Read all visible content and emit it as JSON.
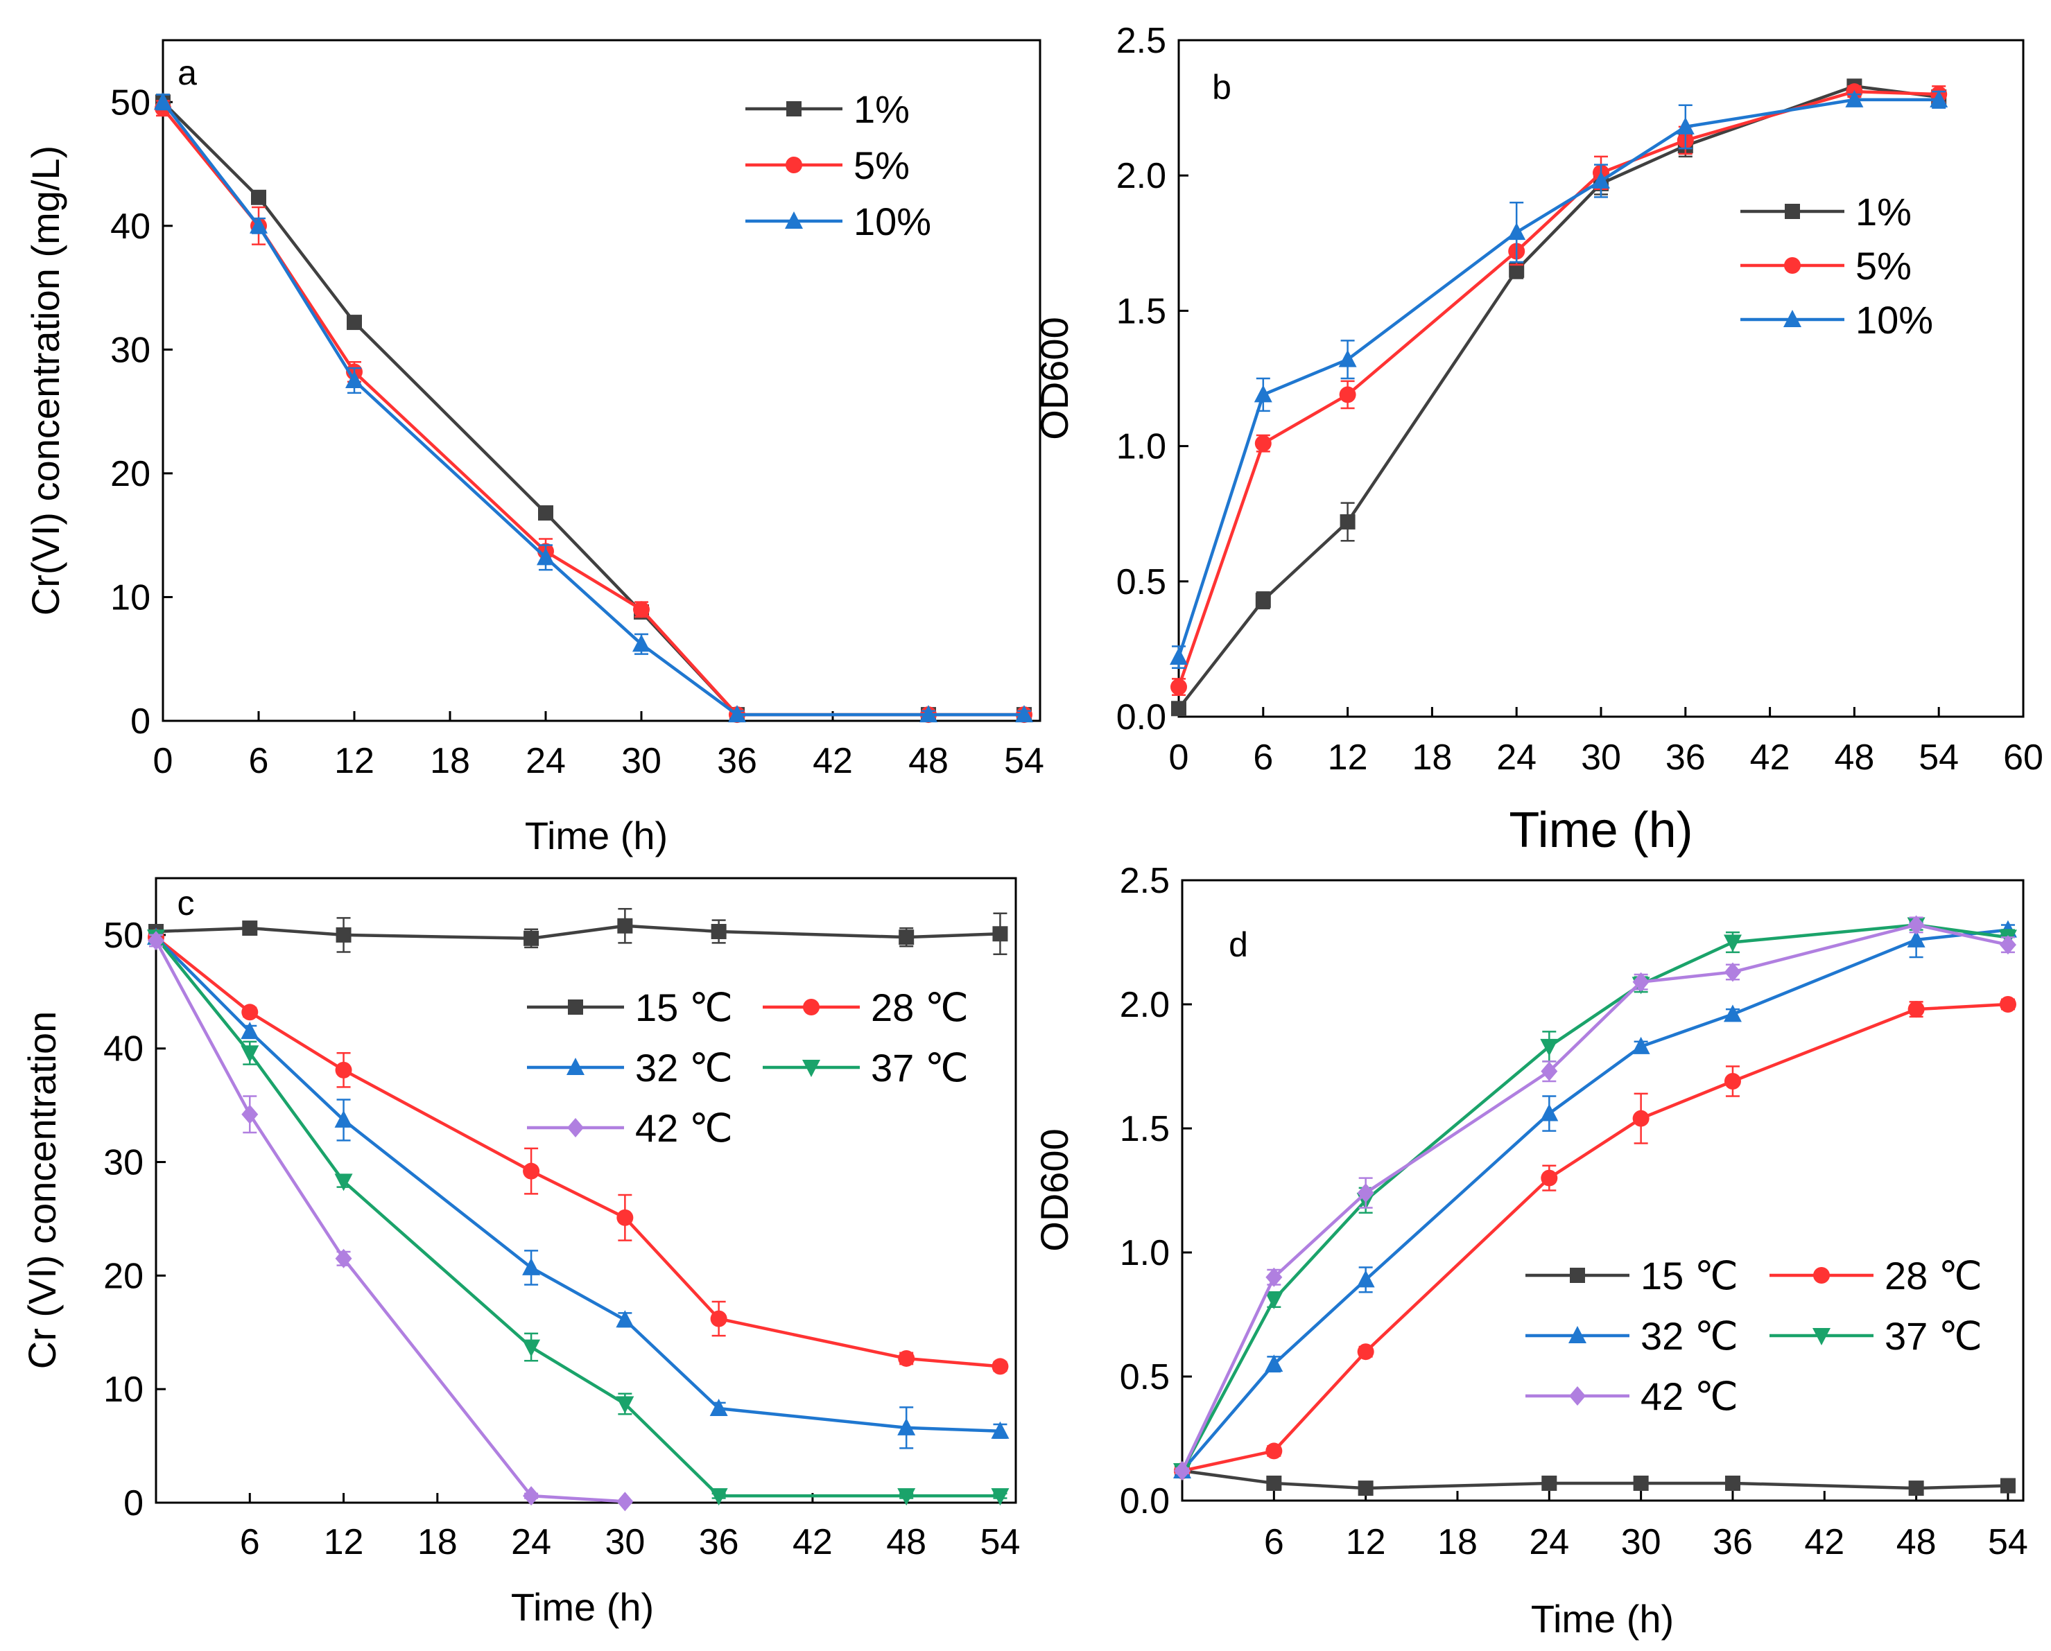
{
  "chart_data": [
    {
      "type": "line",
      "panel": "a",
      "xlabel": "Time (h)",
      "ylabel": "Cr(VI) concentration (mg/L)",
      "xlim": [
        0,
        55
      ],
      "ylim": [
        0,
        55
      ],
      "xticks": [
        0,
        6,
        12,
        18,
        24,
        30,
        36,
        42,
        48,
        54
      ],
      "yticks": [
        0,
        10,
        20,
        30,
        40,
        50
      ],
      "legend_position": "top-right",
      "series": [
        {
          "name": "1%",
          "color": "#404040",
          "marker": "square",
          "x": [
            0,
            6,
            12,
            24,
            30,
            36,
            48,
            54
          ],
          "y": [
            50,
            42.3,
            32.2,
            16.8,
            8.8,
            0.5,
            0.5,
            0.5
          ],
          "err": [
            0.6,
            0.5,
            0.4,
            0.4,
            0.5,
            0.3,
            0.3,
            0.3
          ]
        },
        {
          "name": "5%",
          "color": "#ff3333",
          "marker": "circle",
          "x": [
            0,
            6,
            12,
            24,
            30,
            36,
            48,
            54
          ],
          "y": [
            49.5,
            40,
            28.2,
            13.7,
            9,
            0.5,
            0.5,
            0.5
          ],
          "err": [
            0.6,
            1.5,
            0.8,
            1.0,
            0.6,
            0.3,
            0.3,
            0.3
          ]
        },
        {
          "name": "10%",
          "color": "#1f77d0",
          "marker": "triangle",
          "x": [
            0,
            6,
            12,
            24,
            30,
            36,
            48,
            54
          ],
          "y": [
            50,
            40,
            27.5,
            13.2,
            6.2,
            0.5,
            0.5,
            0.5
          ],
          "err": [
            0.6,
            0.6,
            1.0,
            1.0,
            0.8,
            0.3,
            0.3,
            0.3
          ]
        }
      ]
    },
    {
      "type": "line",
      "panel": "b",
      "xlabel": "Time (h)",
      "ylabel": "OD600",
      "xlim": [
        0,
        60
      ],
      "ylim": [
        0,
        2.5
      ],
      "xticks": [
        0,
        6,
        12,
        18,
        24,
        30,
        36,
        42,
        48,
        54,
        60
      ],
      "yticks": [
        0.0,
        0.5,
        1.0,
        1.5,
        2.0,
        2.5
      ],
      "legend_position": "right",
      "series": [
        {
          "name": "1%",
          "color": "#404040",
          "marker": "square",
          "x": [
            0,
            6,
            12,
            24,
            30,
            36,
            48,
            54
          ],
          "y": [
            0.03,
            0.43,
            0.72,
            1.65,
            1.97,
            2.11,
            2.33,
            2.29
          ],
          "err": [
            0.02,
            0.03,
            0.07,
            0.03,
            0.04,
            0.04,
            0.02,
            0.02
          ]
        },
        {
          "name": "5%",
          "color": "#ff3333",
          "marker": "circle",
          "x": [
            0,
            6,
            12,
            24,
            30,
            36,
            48,
            54
          ],
          "y": [
            0.11,
            1.01,
            1.19,
            1.72,
            2.01,
            2.13,
            2.31,
            2.3
          ],
          "err": [
            0.03,
            0.03,
            0.05,
            0.05,
            0.06,
            0.05,
            0.02,
            0.03
          ]
        },
        {
          "name": "10%",
          "color": "#1f77d0",
          "marker": "triangle",
          "x": [
            0,
            6,
            12,
            24,
            30,
            36,
            48,
            54
          ],
          "y": [
            0.22,
            1.19,
            1.32,
            1.79,
            1.98,
            2.18,
            2.28,
            2.28
          ],
          "err": [
            0.04,
            0.06,
            0.07,
            0.11,
            0.06,
            0.08,
            0.02,
            0.03
          ]
        }
      ]
    },
    {
      "type": "line",
      "panel": "c",
      "xlabel": "Time (h)",
      "ylabel": "Cr (VI) concentration",
      "xlim": [
        0,
        55
      ],
      "ylim": [
        0,
        55
      ],
      "xticks": [
        6,
        12,
        18,
        24,
        30,
        36,
        42,
        48,
        54
      ],
      "yticks": [
        0,
        10,
        20,
        30,
        40,
        50
      ],
      "legend_position": "center-right",
      "series": [
        {
          "name": "15 ℃",
          "color": "#404040",
          "marker": "square",
          "x": [
            0,
            6,
            12,
            24,
            30,
            36,
            48,
            54
          ],
          "y": [
            50.3,
            50.6,
            50.0,
            49.7,
            50.8,
            50.3,
            49.8,
            50.1
          ],
          "err": [
            0.5,
            0.4,
            1.5,
            0.8,
            1.5,
            1.0,
            0.8,
            1.8
          ]
        },
        {
          "name": "28 ℃",
          "color": "#ff3333",
          "marker": "circle",
          "x": [
            0,
            6,
            12,
            24,
            30,
            36,
            48,
            54
          ],
          "y": [
            49.8,
            43.2,
            38.1,
            29.2,
            25.1,
            16.2,
            12.7,
            12.0
          ],
          "err": [
            0.5,
            0.4,
            1.5,
            2.0,
            2.0,
            1.5,
            0.5,
            0.4
          ]
        },
        {
          "name": "32 ℃",
          "color": "#1f77d0",
          "marker": "triangle",
          "x": [
            0,
            6,
            12,
            24,
            30,
            36,
            48,
            54
          ],
          "y": [
            49.8,
            41.5,
            33.7,
            20.7,
            16.1,
            8.3,
            6.6,
            6.3
          ],
          "err": [
            0.5,
            0.5,
            1.8,
            1.5,
            0.6,
            0.5,
            1.8,
            0.6
          ]
        },
        {
          "name": "37 ℃",
          "color": "#1aa36a",
          "marker": "triangle-down",
          "x": [
            0,
            6,
            12,
            24,
            30,
            36,
            48,
            54
          ],
          "y": [
            49.8,
            39.6,
            28.3,
            13.7,
            8.7,
            0.6,
            0.6,
            0.6
          ],
          "err": [
            0.5,
            1.0,
            0.5,
            1.2,
            0.9,
            0.2,
            0.2,
            0.2
          ]
        },
        {
          "name": "42 ℃",
          "color": "#b07fe0",
          "marker": "diamond",
          "x": [
            0,
            6,
            12,
            24,
            30
          ],
          "y": [
            49.5,
            34.2,
            21.5,
            0.6,
            0.1
          ],
          "err": [
            0.5,
            1.6,
            0.6,
            0.2,
            0.1
          ]
        }
      ]
    },
    {
      "type": "line",
      "panel": "d",
      "xlabel": "Time (h)",
      "ylabel": "OD600",
      "xlim": [
        0,
        55
      ],
      "ylim": [
        0,
        2.5
      ],
      "xticks": [
        6,
        12,
        18,
        24,
        30,
        36,
        42,
        48,
        54
      ],
      "yticks": [
        0.0,
        0.5,
        1.0,
        1.5,
        2.0,
        2.5
      ],
      "legend_position": "bottom-right",
      "series": [
        {
          "name": "15 ℃",
          "color": "#404040",
          "marker": "square",
          "x": [
            0,
            6,
            12,
            24,
            30,
            36,
            48,
            54
          ],
          "y": [
            0.12,
            0.07,
            0.05,
            0.07,
            0.07,
            0.07,
            0.05,
            0.06
          ],
          "err": [
            0.01,
            0.01,
            0.01,
            0.01,
            0.01,
            0.01,
            0.01,
            0.01
          ]
        },
        {
          "name": "28 ℃",
          "color": "#ff3333",
          "marker": "circle",
          "x": [
            0,
            6,
            12,
            24,
            30,
            36,
            48,
            54
          ],
          "y": [
            0.12,
            0.2,
            0.6,
            1.3,
            1.54,
            1.69,
            1.98,
            2.0
          ],
          "err": [
            0.01,
            0.02,
            0.02,
            0.05,
            0.1,
            0.06,
            0.03,
            0.02
          ]
        },
        {
          "name": "32 ℃",
          "color": "#1f77d0",
          "marker": "triangle",
          "x": [
            0,
            6,
            12,
            24,
            30,
            36,
            48,
            54
          ],
          "y": [
            0.12,
            0.55,
            0.89,
            1.56,
            1.83,
            1.96,
            2.26,
            2.3
          ],
          "err": [
            0.01,
            0.03,
            0.05,
            0.07,
            0.02,
            0.02,
            0.07,
            0.02
          ]
        },
        {
          "name": "37 ℃",
          "color": "#1aa36a",
          "marker": "triangle-down",
          "x": [
            0,
            6,
            12,
            24,
            30,
            36,
            48,
            54
          ],
          "y": [
            0.12,
            0.81,
            1.21,
            1.83,
            2.08,
            2.25,
            2.32,
            2.27
          ],
          "err": [
            0.01,
            0.03,
            0.05,
            0.06,
            0.03,
            0.04,
            0.02,
            0.03
          ]
        },
        {
          "name": "42 ℃",
          "color": "#b07fe0",
          "marker": "diamond",
          "x": [
            0,
            6,
            12,
            24,
            30,
            36,
            48,
            54
          ],
          "y": [
            0.12,
            0.9,
            1.24,
            1.73,
            2.09,
            2.13,
            2.32,
            2.24
          ],
          "err": [
            0.01,
            0.03,
            0.06,
            0.04,
            0.03,
            0.03,
            0.03,
            0.03
          ]
        }
      ]
    }
  ]
}
